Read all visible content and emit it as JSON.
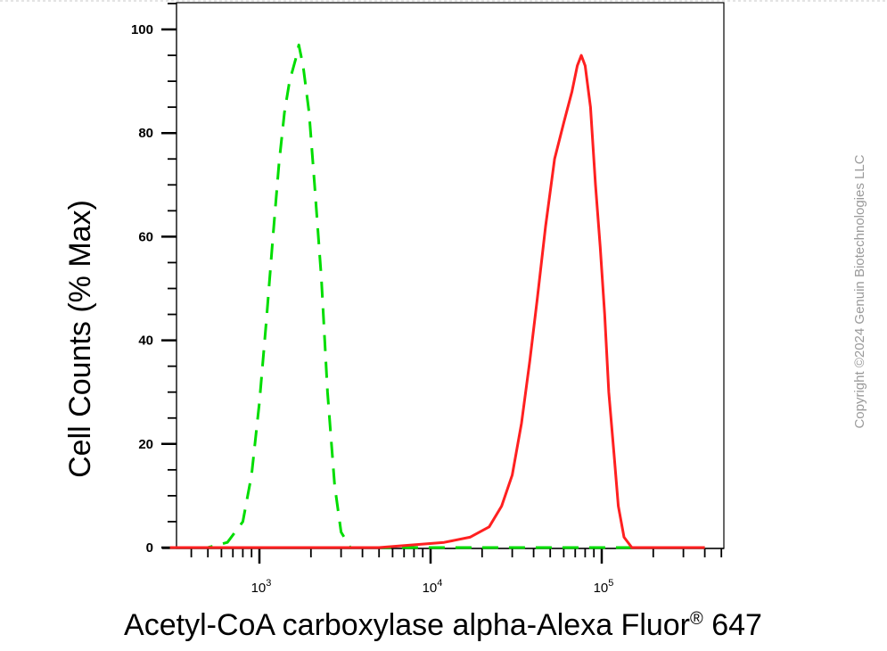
{
  "chart_data": {
    "type": "line",
    "title": "",
    "xlabel": "Acetyl-CoA carboxylase alpha-Alexa Fluor",
    "xlabel_superscript": "®",
    "xlabel_suffix": " 647",
    "ylabel": "Cell Counts (% Max)",
    "x_scale": "log",
    "xlim": [
      250,
      450000
    ],
    "ylim": [
      0,
      105
    ],
    "x_ticks": [
      {
        "base": "10",
        "exp": "3",
        "value": 1000
      },
      {
        "base": "10",
        "exp": "4",
        "value": 10000
      },
      {
        "base": "10",
        "exp": "5",
        "value": 100000
      }
    ],
    "y_ticks": [
      "0",
      "20",
      "40",
      "60",
      "80",
      "100"
    ],
    "grid": false,
    "series": [
      {
        "color": "#00dd00",
        "style": "dashed",
        "points": [
          [
            300,
            0
          ],
          [
            500,
            0
          ],
          [
            650,
            1
          ],
          [
            800,
            5
          ],
          [
            900,
            14
          ],
          [
            1000,
            28
          ],
          [
            1100,
            44
          ],
          [
            1200,
            60
          ],
          [
            1300,
            74
          ],
          [
            1400,
            84
          ],
          [
            1500,
            90
          ],
          [
            1650,
            95
          ],
          [
            1700,
            97
          ],
          [
            1800,
            93
          ],
          [
            1950,
            84
          ],
          [
            2100,
            70
          ],
          [
            2300,
            52
          ],
          [
            2500,
            30
          ],
          [
            2750,
            12
          ],
          [
            3000,
            3
          ],
          [
            3400,
            0
          ],
          [
            10000,
            0
          ],
          [
            100000,
            0
          ],
          [
            400000,
            0
          ]
        ]
      },
      {
        "color": "#ff2020",
        "style": "solid",
        "points": [
          [
            300,
            0
          ],
          [
            5000,
            0
          ],
          [
            12000,
            1
          ],
          [
            17000,
            2
          ],
          [
            22000,
            4
          ],
          [
            26000,
            8
          ],
          [
            30000,
            14
          ],
          [
            34000,
            24
          ],
          [
            38000,
            36
          ],
          [
            42000,
            48
          ],
          [
            47000,
            62
          ],
          [
            53000,
            75
          ],
          [
            60000,
            82
          ],
          [
            67000,
            88
          ],
          [
            72000,
            93
          ],
          [
            76000,
            95
          ],
          [
            80000,
            93
          ],
          [
            86000,
            85
          ],
          [
            92000,
            70
          ],
          [
            98000,
            58
          ],
          [
            104000,
            45
          ],
          [
            110000,
            30
          ],
          [
            118000,
            18
          ],
          [
            125000,
            8
          ],
          [
            135000,
            2
          ],
          [
            150000,
            0
          ],
          [
            400000,
            0
          ]
        ]
      }
    ]
  },
  "watermark": {
    "text": "Copyright ©2024 Genuin Biotechnologies LLC"
  }
}
